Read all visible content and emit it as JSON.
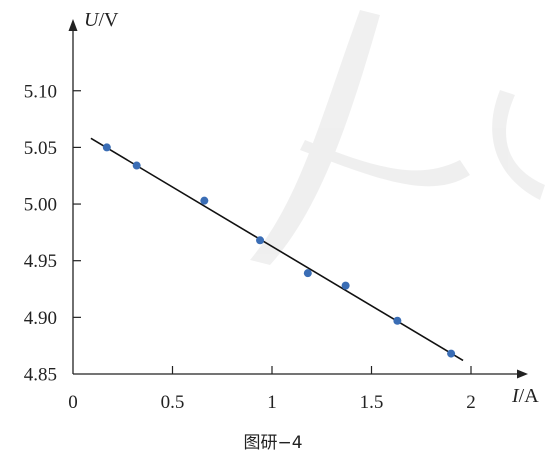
{
  "chart_data": {
    "type": "scatter",
    "x_unit_symbol": "I",
    "x_unit": "/A",
    "y_unit_symbol": "U",
    "y_unit": "/V",
    "caption": "图研−4",
    "x_ticks": [
      "0",
      "0.5",
      "1",
      "1.5",
      "2"
    ],
    "y_ticks": [
      "4.85",
      "4.90",
      "4.95",
      "5.00",
      "5.05",
      "5.10"
    ],
    "xlim": [
      0,
      2.1
    ],
    "ylim": [
      4.85,
      5.15
    ],
    "series": [
      {
        "x": [
          0.17,
          0.32,
          0.66,
          0.94,
          1.18,
          1.37,
          1.63,
          1.9
        ],
        "y": [
          5.05,
          5.034,
          5.003,
          4.968,
          4.939,
          4.928,
          4.897,
          4.868
        ]
      }
    ],
    "fit_line": {
      "x": [
        0.09,
        1.96
      ],
      "y": [
        5.058,
        4.862
      ]
    },
    "grid": false,
    "colors": {
      "points": "#3a6db5",
      "line": "#111111",
      "axis": "#222222"
    }
  }
}
